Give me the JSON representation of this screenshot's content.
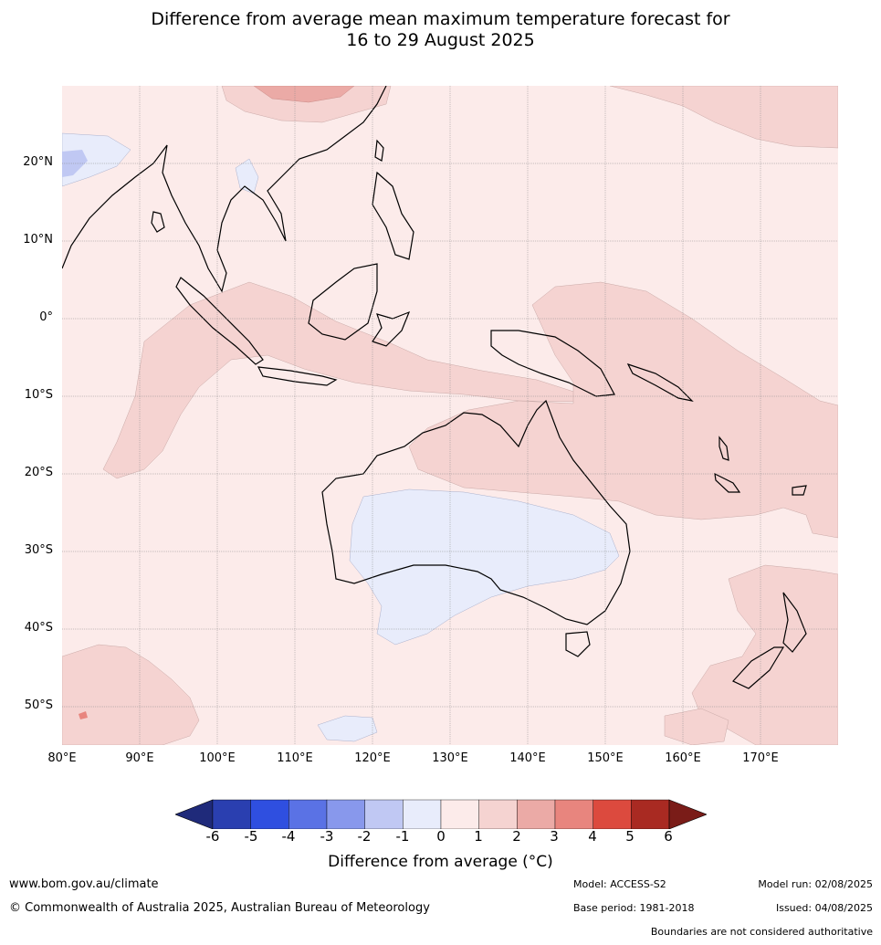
{
  "title_line1": "Difference from average mean maximum temperature forecast for",
  "title_line2": "16 to 29 August 2025",
  "lat_labels": [
    "20°N",
    "10°N",
    "0°",
    "10°S",
    "20°S",
    "30°S",
    "40°S",
    "50°S"
  ],
  "lon_labels": [
    "80°E",
    "90°E",
    "100°E",
    "110°E",
    "120°E",
    "130°E",
    "140°E",
    "150°E",
    "160°E",
    "170°E"
  ],
  "map": {
    "lon_range": [
      80,
      180
    ],
    "lat_range": [
      -55,
      30
    ],
    "grid_interval_deg": 10,
    "base_color": "#fcebea"
  },
  "colorbar": {
    "levels": [
      "-6",
      "-5",
      "-4",
      "-3",
      "-2",
      "-1",
      "0",
      "1",
      "2",
      "3",
      "4",
      "5",
      "6"
    ],
    "colors": [
      "#1f2a7a",
      "#2a3fb0",
      "#2f4fe0",
      "#5a72e5",
      "#8898ec",
      "#c0c8f3",
      "#e8ecfb",
      "#fcebea",
      "#f5d3d1",
      "#ebaaa6",
      "#e8857e",
      "#dc4a3e",
      "#a92a22",
      "#7a1c18"
    ],
    "label": "Difference from average (°C)"
  },
  "footer": {
    "website": "www.bom.gov.au/climate",
    "copyright": "© Commonwealth of Australia 2025, Australian Bureau of Meteorology",
    "model": "Model: ACCESS-S2",
    "base_period": "Base period: 1981-2018",
    "model_run": "Model run: 02/08/2025",
    "issued": "Issued: 04/08/2025",
    "disclaimer": "Boundaries are not considered authoritative"
  }
}
